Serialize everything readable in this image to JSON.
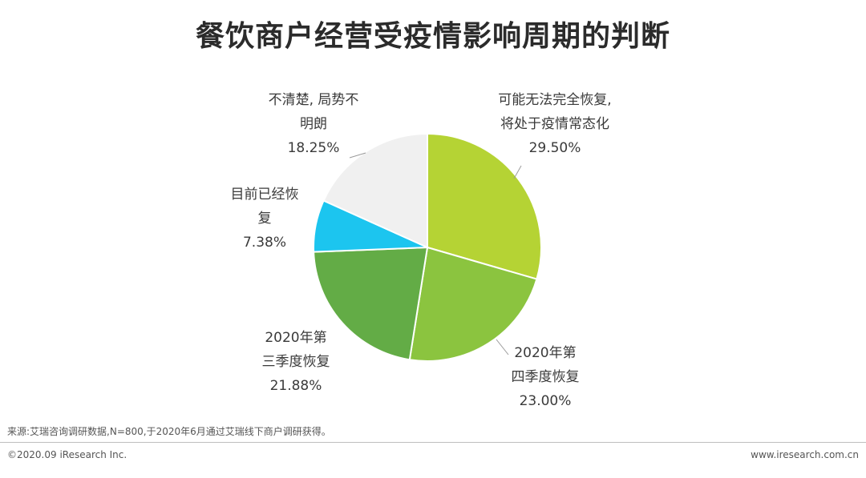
{
  "title": "餐饮商户经营受疫情影响周期的判断",
  "chart_data": {
    "type": "pie",
    "title": "餐饮商户经营受疫情影响周期的判断",
    "slices": [
      {
        "label_lines": [
          "可能无法完全恢复,",
          "将处于疫情常态化"
        ],
        "value": 29.5,
        "value_label": "29.50%",
        "color": "#b5d334"
      },
      {
        "label_lines": [
          "2020年第",
          "四季度恢复"
        ],
        "value": 23.0,
        "value_label": "23.00%",
        "color": "#8bc43f"
      },
      {
        "label_lines": [
          "2020年第",
          "三季度恢复"
        ],
        "value": 21.88,
        "value_label": "21.88%",
        "color": "#63ac46"
      },
      {
        "label_lines": [
          "目前已经恢",
          "复"
        ],
        "value": 7.38,
        "value_label": "7.38%",
        "color": "#1cc5ef"
      },
      {
        "label_lines": [
          "不清楚, 局势不",
          "明朗"
        ],
        "value": 18.25,
        "value_label": "18.25%",
        "color": "#f0f0f0"
      }
    ]
  },
  "source": "来源:艾瑞咨询调研数据,N=800,于2020年6月通过艾瑞线下商户调研获得。",
  "footer": {
    "left": "©2020.09 iResearch Inc.",
    "right": "www.iresearch.com.cn"
  }
}
